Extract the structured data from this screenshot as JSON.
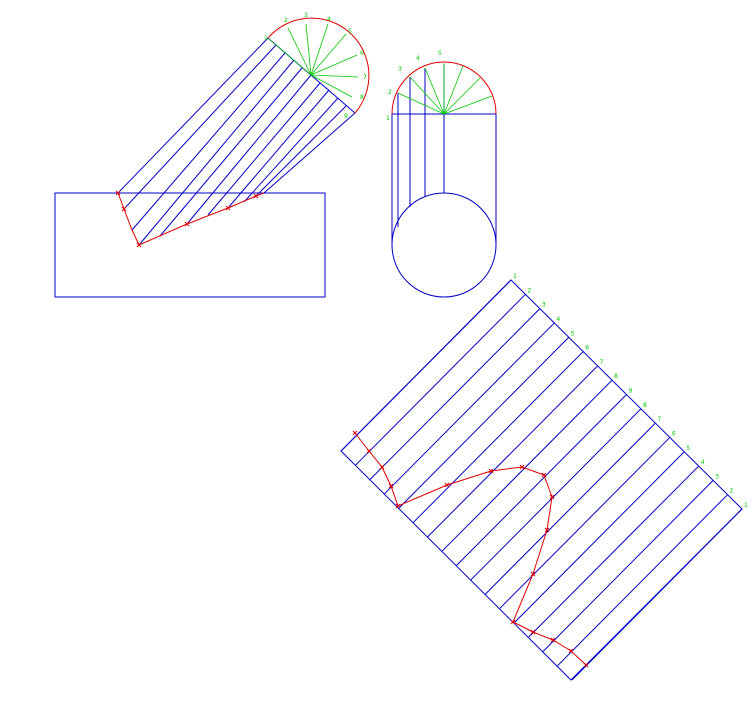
{
  "colors": {
    "background": "#ffffff",
    "outline": "#0000c8",
    "curve": "#e00000",
    "construction": "#00c800"
  },
  "semicircle_labels": [
    "1",
    "2",
    "3",
    "4",
    "5",
    "6",
    "7",
    "8",
    "9"
  ],
  "end_circle_labels": [
    "1",
    "2",
    "3",
    "4",
    "5"
  ],
  "development_labels": [
    "1",
    "2",
    "3",
    "4",
    "5",
    "6",
    "7",
    "8",
    "9",
    "8",
    "7",
    "6",
    "5",
    "4",
    "3",
    "2",
    "1"
  ]
}
